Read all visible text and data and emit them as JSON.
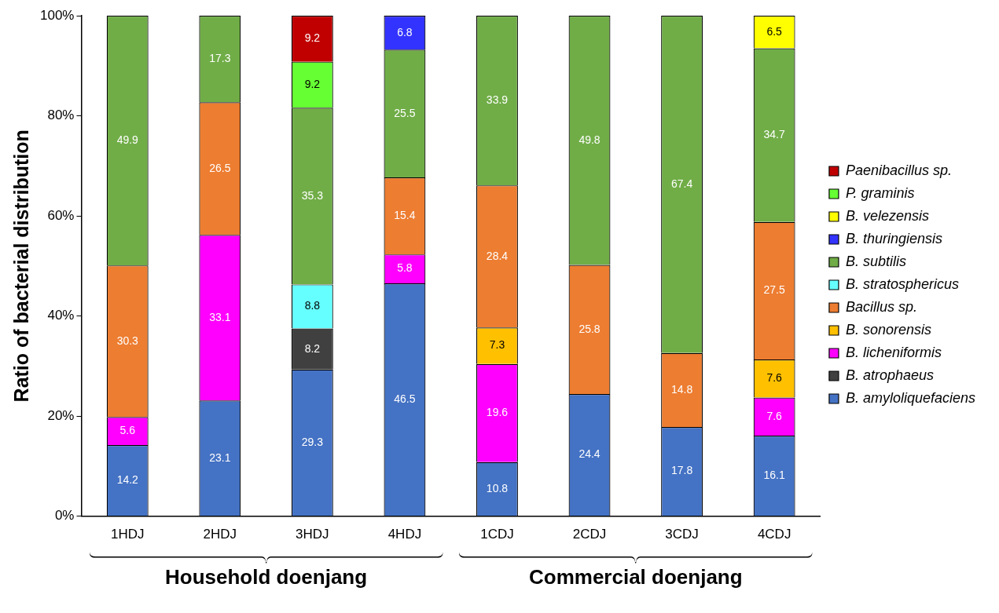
{
  "chart_data": {
    "type": "bar",
    "stacked": true,
    "ylabel": "Ratio of bacterial distribution",
    "categories": [
      "1HDJ",
      "2HDJ",
      "3HDJ",
      "4HDJ",
      "1CDJ",
      "2CDJ",
      "3CDJ",
      "4CDJ"
    ],
    "series": [
      {
        "name": "B. amyloliquefaciens",
        "color": "#4472c4",
        "values": [
          14.2,
          23.1,
          29.3,
          46.5,
          10.8,
          24.4,
          17.8,
          16.1
        ]
      },
      {
        "name": "B. atrophaeus",
        "color": "#404040",
        "values": [
          null,
          null,
          8.2,
          null,
          null,
          null,
          null,
          null
        ]
      },
      {
        "name": "B. licheniformis",
        "color": "#ff00ff",
        "values": [
          5.6,
          33.1,
          null,
          5.8,
          19.6,
          null,
          null,
          7.6
        ]
      },
      {
        "name": "B. sonorensis",
        "color": "#ffc000",
        "values": [
          null,
          null,
          null,
          null,
          7.3,
          null,
          null,
          7.6
        ]
      },
      {
        "name": "Bacillus sp.",
        "color": "#ed7d31",
        "values": [
          30.3,
          26.5,
          null,
          15.4,
          28.4,
          25.8,
          14.8,
          27.5
        ]
      },
      {
        "name": "B. stratosphericus",
        "color": "#66ffff",
        "values": [
          null,
          null,
          8.8,
          null,
          null,
          null,
          null,
          null
        ]
      },
      {
        "name": "B. subtilis",
        "color": "#70ad47",
        "values": [
          49.9,
          17.3,
          35.3,
          25.5,
          33.9,
          49.8,
          67.4,
          34.7
        ]
      },
      {
        "name": "B. thuringiensis",
        "color": "#3333ff",
        "values": [
          null,
          null,
          null,
          6.8,
          null,
          null,
          null,
          null
        ]
      },
      {
        "name": "B. velezensis",
        "color": "#ffff00",
        "values": [
          null,
          null,
          null,
          null,
          null,
          null,
          null,
          6.5
        ]
      },
      {
        "name": "P. graminis",
        "color": "#66ff33",
        "values": [
          null,
          null,
          9.2,
          null,
          null,
          null,
          null,
          null
        ]
      },
      {
        "name": "Paenibacillus sp.",
        "color": "#c00000",
        "values": [
          null,
          null,
          9.2,
          null,
          null,
          null,
          null,
          null
        ]
      }
    ],
    "ylim": [
      0,
      100
    ],
    "yticks": [
      {
        "value": 0,
        "label": "0%"
      },
      {
        "value": 20,
        "label": "20%"
      },
      {
        "value": 40,
        "label": "40%"
      },
      {
        "value": 60,
        "label": "60%"
      },
      {
        "value": 80,
        "label": "80%"
      },
      {
        "value": 100,
        "label": "100%"
      }
    ],
    "data_labels": true,
    "grid": false,
    "legend": "right",
    "annotations": [
      "Household doenjang",
      "Commercial doenjang"
    ]
  }
}
